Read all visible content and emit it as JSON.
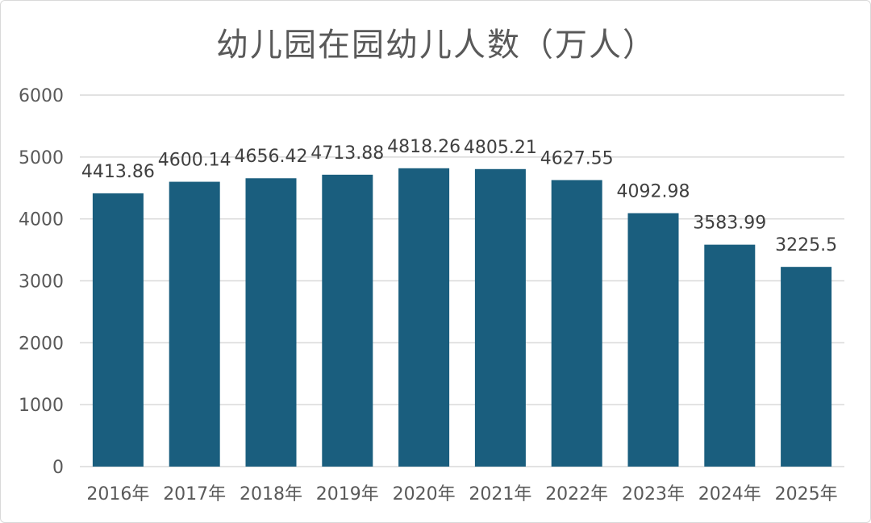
{
  "chart_data": {
    "type": "bar",
    "title": "幼儿园在园幼儿人数（万人）",
    "categories": [
      "2016年",
      "2017年",
      "2018年",
      "2019年",
      "2020年",
      "2021年",
      "2022年",
      "2023年",
      "2024年",
      "2025年"
    ],
    "values": [
      4413.86,
      4600.14,
      4656.42,
      4713.88,
      4818.26,
      4805.21,
      4627.55,
      4092.98,
      3583.99,
      3225.5
    ],
    "data_labels": [
      "4413.86",
      "4600.14",
      "4656.42",
      "4713.88",
      "4818.26",
      "4805.21",
      "4627.55",
      "4092.98",
      "3583.99",
      "3225.5"
    ],
    "y_ticks": [
      "0",
      "1000",
      "2000",
      "3000",
      "4000",
      "5000",
      "6000"
    ],
    "ylim": [
      0,
      6000
    ],
    "grid": true,
    "bar_color": "#1a5e7e",
    "grid_color": "#d9d9d9"
  }
}
